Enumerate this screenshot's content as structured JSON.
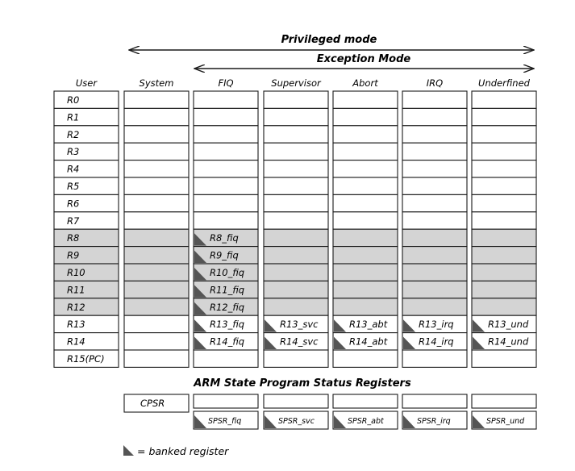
{
  "arrows": {
    "privileged": "Privileged mode",
    "exception": "Exception Mode"
  },
  "columns": [
    {
      "key": "user",
      "label": "User"
    },
    {
      "key": "system",
      "label": "System"
    },
    {
      "key": "fiq",
      "label": "FIQ"
    },
    {
      "key": "svc",
      "label": "Supervisor"
    },
    {
      "key": "abt",
      "label": "Abort"
    },
    {
      "key": "irq",
      "label": "IRQ"
    },
    {
      "key": "und",
      "label": "Underfined"
    }
  ],
  "registers": [
    "R0",
    "R1",
    "R2",
    "R3",
    "R4",
    "R5",
    "R6",
    "R7",
    "R8",
    "R9",
    "R10",
    "R11",
    "R12",
    "R13",
    "R14",
    "R15(PC)"
  ],
  "banked": {
    "fiq": [
      "R8_fiq",
      "R9_fiq",
      "R10_fiq",
      "R11_fiq",
      "R12_fiq",
      "R13_fiq",
      "R14_fiq"
    ],
    "svc": [
      "R13_svc",
      "R14_svc"
    ],
    "abt": [
      "R13_abt",
      "R14_abt"
    ],
    "irq": [
      "R13_irq",
      "R14_irq"
    ],
    "und": [
      "R13_und",
      "R14_und"
    ]
  },
  "psr": {
    "title": "ARM State Program Status Registers",
    "cpsr": "CPSR",
    "spsr": [
      "SPSR_fiq",
      "SPSR_svc",
      "SPSR_abt",
      "SPSR_irq",
      "SPSR_und"
    ]
  },
  "legend": {
    "text": "= banked register"
  },
  "colors": {
    "shaded": "#d4d4d4",
    "banked_marker": "#555555",
    "line": "#1a1a1a"
  }
}
